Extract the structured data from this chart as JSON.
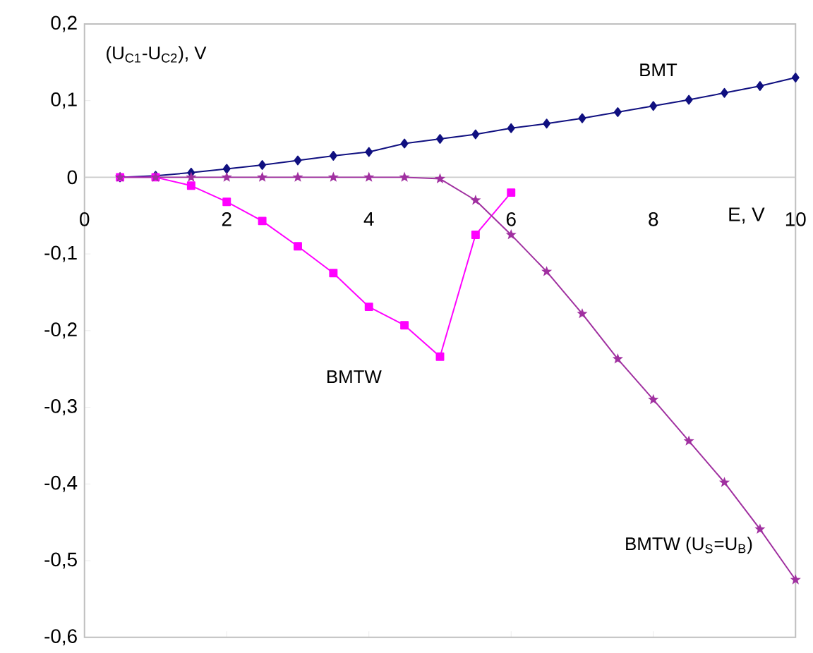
{
  "chart_data": {
    "type": "line",
    "ylabel": "(U$_{C1}$-U$_{C2}$), V",
    "xlabel": "E, V",
    "x": [
      0.5,
      1,
      1.5,
      2,
      2.5,
      3,
      3.5,
      4,
      4.5,
      5,
      5.5,
      6,
      6.5,
      7,
      7.5,
      8,
      8.5,
      9,
      9.5,
      10
    ],
    "series": [
      {
        "name": "BMT",
        "color": "#101080",
        "marker": "diamond",
        "values": [
          0,
          0.002,
          0.006,
          0.011,
          0.016,
          0.022,
          0.028,
          0.033,
          0.044,
          0.05,
          0.056,
          0.064,
          0.07,
          0.077,
          0.085,
          0.093,
          0.101,
          0.11,
          0.119,
          0.13
        ]
      },
      {
        "name": "BMTW",
        "color": "#ff00ff",
        "marker": "square",
        "x": [
          0.5,
          1,
          1.5,
          2,
          2.5,
          3,
          3.5,
          4,
          4.5,
          5,
          5.5,
          6
        ],
        "values": [
          0,
          0,
          -0.011,
          -0.032,
          -0.057,
          -0.09,
          -0.125,
          -0.169,
          -0.193,
          -0.234,
          -0.075,
          -0.02
        ]
      },
      {
        "name": "BMTW (U$_{S}$=U$_{B}$)",
        "color": "#a030a0",
        "marker": "star",
        "values": [
          0,
          0,
          0,
          0,
          0,
          0,
          0,
          0,
          0,
          -0.002,
          -0.03,
          -0.075,
          -0.123,
          -0.178,
          -0.237,
          -0.29,
          -0.344,
          -0.398,
          -0.459,
          -0.525
        ]
      }
    ],
    "xlim": [
      0,
      10
    ],
    "xticks": [
      0,
      2,
      4,
      6,
      8,
      10
    ],
    "ylim": [
      -0.6,
      0.2
    ],
    "yticks": [
      {
        "value": -0.6,
        "label": "-0,6"
      },
      {
        "value": -0.5,
        "label": "-0,5"
      },
      {
        "value": -0.4,
        "label": "-0,4"
      },
      {
        "value": -0.3,
        "label": "-0,3"
      },
      {
        "value": -0.2,
        "label": "-0,2"
      },
      {
        "value": -0.1,
        "label": "-0,1"
      },
      {
        "value": 0,
        "label": "0"
      },
      {
        "value": 0.1,
        "label": "0,1"
      },
      {
        "value": 0.2,
        "label": "0,2"
      }
    ],
    "grid": false,
    "line_style": "solid"
  }
}
